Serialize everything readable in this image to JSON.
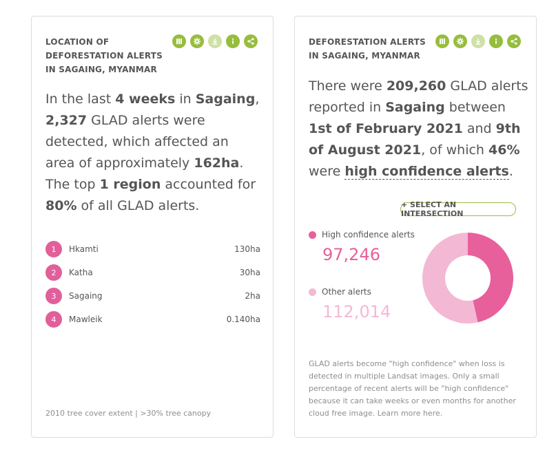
{
  "left_widget": {
    "title": "LOCATION OF DEFORESTATION ALERTS IN SAGAING, MYANMAR",
    "sentence": {
      "p1": "In the last ",
      "weeks": "4 weeks",
      "p2": " in ",
      "region": "Sagaing",
      "p3": ", ",
      "count": "2,327",
      "p4": " GLAD alerts were detected, which affected an area of approximately ",
      "area": "162ha",
      "p5": ". The top ",
      "top_n": "1 region",
      "p6": " accounted for ",
      "pct": "80%",
      "p7": " of all GLAD alerts."
    },
    "rankings": [
      {
        "rank": "1",
        "name": "Hkamti",
        "value": "130ha"
      },
      {
        "rank": "2",
        "name": "Katha",
        "value": "30ha"
      },
      {
        "rank": "3",
        "name": "Sagaing",
        "value": "2ha"
      },
      {
        "rank": "4",
        "name": "Mawleik",
        "value": "0.140ha"
      }
    ],
    "footer": "2010 tree cover extent | >30% tree canopy"
  },
  "right_widget": {
    "title": "DEFORESTATION ALERTS IN SAGAING, MYANMAR",
    "sentence": {
      "p1": "There were ",
      "total": "209,260",
      "p2": " GLAD alerts reported in ",
      "region": "Sagaing",
      "p3": " between ",
      "start": "1st of February 2021",
      "p4": " and ",
      "end": "9th of August 2021",
      "p5": ", of which ",
      "pct": "46%",
      "p6": " were ",
      "conf": "high confidence alerts",
      "p7": "."
    },
    "intersection_button": "+ SELECT AN INTERSECTION",
    "legend": [
      {
        "label": "High confidence alerts",
        "value": "97,246",
        "color": "#e8609b"
      },
      {
        "label": "Other alerts",
        "value": "112,014",
        "color": "#f3b8d4"
      }
    ],
    "description": "GLAD alerts become \"high confidence\" when loss is detected in multiple Landsat images. Only a small percentage of recent alerts will be \"high confidence\" because it can take weeks or even months for another cloud free image. Learn more here."
  },
  "chart_data": {
    "type": "pie",
    "categories": [
      "High confidence alerts",
      "Other alerts"
    ],
    "values": [
      97246,
      112014
    ],
    "colors": [
      "#e8609b",
      "#f3b8d4"
    ]
  },
  "toolbar_icons": [
    "map-icon",
    "settings-icon",
    "download-icon",
    "info-icon",
    "share-icon"
  ],
  "colors": {
    "accent": "#97bd3d",
    "accent_disabled": "#cfe0a6",
    "rank": "#e15f9b"
  }
}
